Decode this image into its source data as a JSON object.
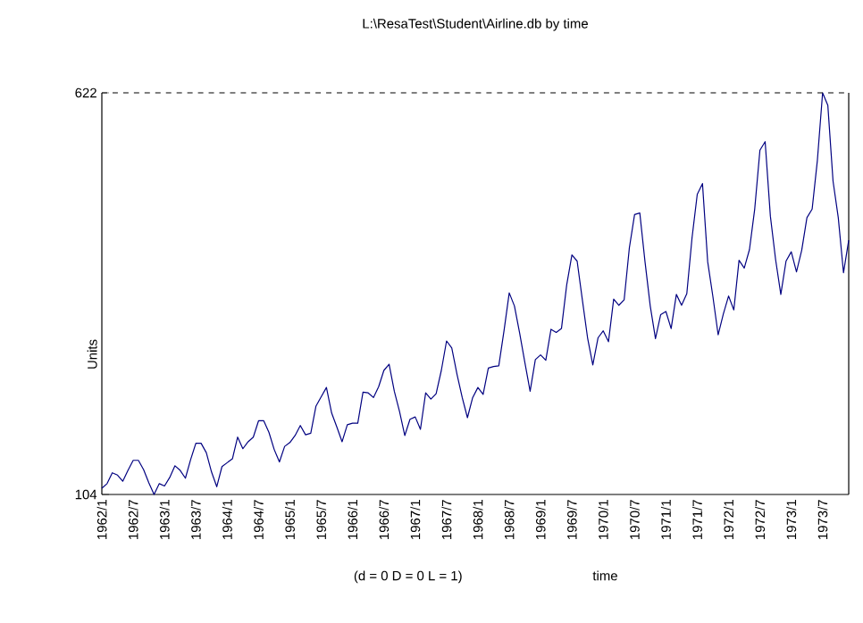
{
  "chart_data": {
    "type": "line",
    "title": "L:\\ResaTest\\Student\\Airline.db by time",
    "xlabel": "time",
    "ylabel": "Units",
    "annotations": [
      "(d = 0 D = 0 L = 1)"
    ],
    "categories": [
      "1962/1",
      null,
      null,
      null,
      null,
      null,
      "1962/7",
      null,
      null,
      null,
      null,
      null,
      "1963/1",
      null,
      null,
      null,
      null,
      null,
      "1963/7",
      null,
      null,
      null,
      null,
      null,
      "1964/1",
      null,
      null,
      null,
      null,
      null,
      "1964/7",
      null,
      null,
      null,
      null,
      null,
      "1965/1",
      null,
      null,
      null,
      null,
      null,
      "1965/7",
      null,
      null,
      null,
      null,
      null,
      "1966/1",
      null,
      null,
      null,
      null,
      null,
      "1966/7",
      null,
      null,
      null,
      null,
      null,
      "1967/1",
      null,
      null,
      null,
      null,
      null,
      "1967/7",
      null,
      null,
      null,
      null,
      null,
      "1968/1",
      null,
      null,
      null,
      null,
      null,
      "1968/7",
      null,
      null,
      null,
      null,
      null,
      "1969/1",
      null,
      null,
      null,
      null,
      null,
      "1969/7",
      null,
      null,
      null,
      null,
      null,
      "1970/1",
      null,
      null,
      null,
      null,
      null,
      "1970/7",
      null,
      null,
      null,
      null,
      null,
      "1971/1",
      null,
      null,
      null,
      null,
      null,
      "1971/7",
      null,
      null,
      null,
      null,
      null,
      "1972/1",
      null,
      null,
      null,
      null,
      null,
      "1972/7",
      null,
      null,
      null,
      null,
      null,
      "1973/1",
      null,
      null,
      null,
      null,
      null,
      "1973/7",
      null,
      null,
      null,
      null,
      null
    ],
    "values": [
      112,
      118,
      132,
      129,
      121,
      135,
      148,
      148,
      136,
      119,
      104,
      118,
      115,
      126,
      141,
      135,
      125,
      149,
      170,
      170,
      158,
      133,
      114,
      140,
      145,
      150,
      178,
      163,
      172,
      178,
      199,
      199,
      184,
      162,
      146,
      166,
      171,
      180,
      193,
      181,
      183,
      218,
      230,
      242,
      209,
      191,
      172,
      194,
      196,
      196,
      236,
      235,
      229,
      243,
      264,
      272,
      237,
      211,
      180,
      201,
      204,
      188,
      235,
      227,
      234,
      264,
      302,
      293,
      259,
      229,
      203,
      229,
      242,
      233,
      267,
      269,
      270,
      315,
      364,
      347,
      312,
      274,
      237,
      278,
      284,
      277,
      317,
      313,
      318,
      374,
      413,
      405,
      355,
      306,
      271,
      306,
      315,
      301,
      356,
      348,
      355,
      422,
      465,
      467,
      404,
      347,
      305,
      336,
      340,
      318,
      362,
      348,
      363,
      435,
      491,
      505,
      404,
      359,
      310,
      337,
      360,
      342,
      406,
      396,
      420,
      472,
      548,
      559,
      463,
      407,
      362,
      405,
      417,
      391,
      419,
      461,
      472,
      535,
      622,
      606,
      508,
      461,
      390,
      432
    ],
    "color": "#000080",
    "ylim": [
      104,
      622
    ],
    "yticks": [
      104,
      622
    ],
    "ref_lines": [
      {
        "axis": "y",
        "value": 622,
        "line_style": "dashed",
        "color": "#000000"
      }
    ]
  }
}
